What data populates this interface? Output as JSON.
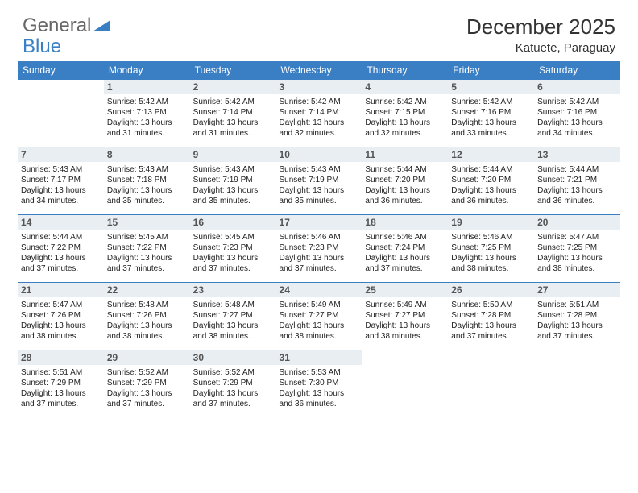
{
  "logo": {
    "text1": "General",
    "text2": "Blue"
  },
  "title": "December 2025",
  "location": "Katuete, Paraguay",
  "day_headers": [
    "Sunday",
    "Monday",
    "Tuesday",
    "Wednesday",
    "Thursday",
    "Friday",
    "Saturday"
  ],
  "colors": {
    "header_bg": "#3a7fc4",
    "header_fg": "#ffffff",
    "daynum_bg": "#e9eef2",
    "border": "#3a7fc4",
    "text": "#222222",
    "logo_gray": "#666666",
    "logo_blue": "#3a7fc4"
  },
  "weeks": [
    [
      {
        "n": "",
        "lines": []
      },
      {
        "n": "1",
        "lines": [
          "Sunrise: 5:42 AM",
          "Sunset: 7:13 PM",
          "Daylight: 13 hours",
          "and 31 minutes."
        ]
      },
      {
        "n": "2",
        "lines": [
          "Sunrise: 5:42 AM",
          "Sunset: 7:14 PM",
          "Daylight: 13 hours",
          "and 31 minutes."
        ]
      },
      {
        "n": "3",
        "lines": [
          "Sunrise: 5:42 AM",
          "Sunset: 7:14 PM",
          "Daylight: 13 hours",
          "and 32 minutes."
        ]
      },
      {
        "n": "4",
        "lines": [
          "Sunrise: 5:42 AM",
          "Sunset: 7:15 PM",
          "Daylight: 13 hours",
          "and 32 minutes."
        ]
      },
      {
        "n": "5",
        "lines": [
          "Sunrise: 5:42 AM",
          "Sunset: 7:16 PM",
          "Daylight: 13 hours",
          "and 33 minutes."
        ]
      },
      {
        "n": "6",
        "lines": [
          "Sunrise: 5:42 AM",
          "Sunset: 7:16 PM",
          "Daylight: 13 hours",
          "and 34 minutes."
        ]
      }
    ],
    [
      {
        "n": "7",
        "lines": [
          "Sunrise: 5:43 AM",
          "Sunset: 7:17 PM",
          "Daylight: 13 hours",
          "and 34 minutes."
        ]
      },
      {
        "n": "8",
        "lines": [
          "Sunrise: 5:43 AM",
          "Sunset: 7:18 PM",
          "Daylight: 13 hours",
          "and 35 minutes."
        ]
      },
      {
        "n": "9",
        "lines": [
          "Sunrise: 5:43 AM",
          "Sunset: 7:19 PM",
          "Daylight: 13 hours",
          "and 35 minutes."
        ]
      },
      {
        "n": "10",
        "lines": [
          "Sunrise: 5:43 AM",
          "Sunset: 7:19 PM",
          "Daylight: 13 hours",
          "and 35 minutes."
        ]
      },
      {
        "n": "11",
        "lines": [
          "Sunrise: 5:44 AM",
          "Sunset: 7:20 PM",
          "Daylight: 13 hours",
          "and 36 minutes."
        ]
      },
      {
        "n": "12",
        "lines": [
          "Sunrise: 5:44 AM",
          "Sunset: 7:20 PM",
          "Daylight: 13 hours",
          "and 36 minutes."
        ]
      },
      {
        "n": "13",
        "lines": [
          "Sunrise: 5:44 AM",
          "Sunset: 7:21 PM",
          "Daylight: 13 hours",
          "and 36 minutes."
        ]
      }
    ],
    [
      {
        "n": "14",
        "lines": [
          "Sunrise: 5:44 AM",
          "Sunset: 7:22 PM",
          "Daylight: 13 hours",
          "and 37 minutes."
        ]
      },
      {
        "n": "15",
        "lines": [
          "Sunrise: 5:45 AM",
          "Sunset: 7:22 PM",
          "Daylight: 13 hours",
          "and 37 minutes."
        ]
      },
      {
        "n": "16",
        "lines": [
          "Sunrise: 5:45 AM",
          "Sunset: 7:23 PM",
          "Daylight: 13 hours",
          "and 37 minutes."
        ]
      },
      {
        "n": "17",
        "lines": [
          "Sunrise: 5:46 AM",
          "Sunset: 7:23 PM",
          "Daylight: 13 hours",
          "and 37 minutes."
        ]
      },
      {
        "n": "18",
        "lines": [
          "Sunrise: 5:46 AM",
          "Sunset: 7:24 PM",
          "Daylight: 13 hours",
          "and 37 minutes."
        ]
      },
      {
        "n": "19",
        "lines": [
          "Sunrise: 5:46 AM",
          "Sunset: 7:25 PM",
          "Daylight: 13 hours",
          "and 38 minutes."
        ]
      },
      {
        "n": "20",
        "lines": [
          "Sunrise: 5:47 AM",
          "Sunset: 7:25 PM",
          "Daylight: 13 hours",
          "and 38 minutes."
        ]
      }
    ],
    [
      {
        "n": "21",
        "lines": [
          "Sunrise: 5:47 AM",
          "Sunset: 7:26 PM",
          "Daylight: 13 hours",
          "and 38 minutes."
        ]
      },
      {
        "n": "22",
        "lines": [
          "Sunrise: 5:48 AM",
          "Sunset: 7:26 PM",
          "Daylight: 13 hours",
          "and 38 minutes."
        ]
      },
      {
        "n": "23",
        "lines": [
          "Sunrise: 5:48 AM",
          "Sunset: 7:27 PM",
          "Daylight: 13 hours",
          "and 38 minutes."
        ]
      },
      {
        "n": "24",
        "lines": [
          "Sunrise: 5:49 AM",
          "Sunset: 7:27 PM",
          "Daylight: 13 hours",
          "and 38 minutes."
        ]
      },
      {
        "n": "25",
        "lines": [
          "Sunrise: 5:49 AM",
          "Sunset: 7:27 PM",
          "Daylight: 13 hours",
          "and 38 minutes."
        ]
      },
      {
        "n": "26",
        "lines": [
          "Sunrise: 5:50 AM",
          "Sunset: 7:28 PM",
          "Daylight: 13 hours",
          "and 37 minutes."
        ]
      },
      {
        "n": "27",
        "lines": [
          "Sunrise: 5:51 AM",
          "Sunset: 7:28 PM",
          "Daylight: 13 hours",
          "and 37 minutes."
        ]
      }
    ],
    [
      {
        "n": "28",
        "lines": [
          "Sunrise: 5:51 AM",
          "Sunset: 7:29 PM",
          "Daylight: 13 hours",
          "and 37 minutes."
        ]
      },
      {
        "n": "29",
        "lines": [
          "Sunrise: 5:52 AM",
          "Sunset: 7:29 PM",
          "Daylight: 13 hours",
          "and 37 minutes."
        ]
      },
      {
        "n": "30",
        "lines": [
          "Sunrise: 5:52 AM",
          "Sunset: 7:29 PM",
          "Daylight: 13 hours",
          "and 37 minutes."
        ]
      },
      {
        "n": "31",
        "lines": [
          "Sunrise: 5:53 AM",
          "Sunset: 7:30 PM",
          "Daylight: 13 hours",
          "and 36 minutes."
        ]
      },
      {
        "n": "",
        "lines": []
      },
      {
        "n": "",
        "lines": []
      },
      {
        "n": "",
        "lines": []
      }
    ]
  ]
}
